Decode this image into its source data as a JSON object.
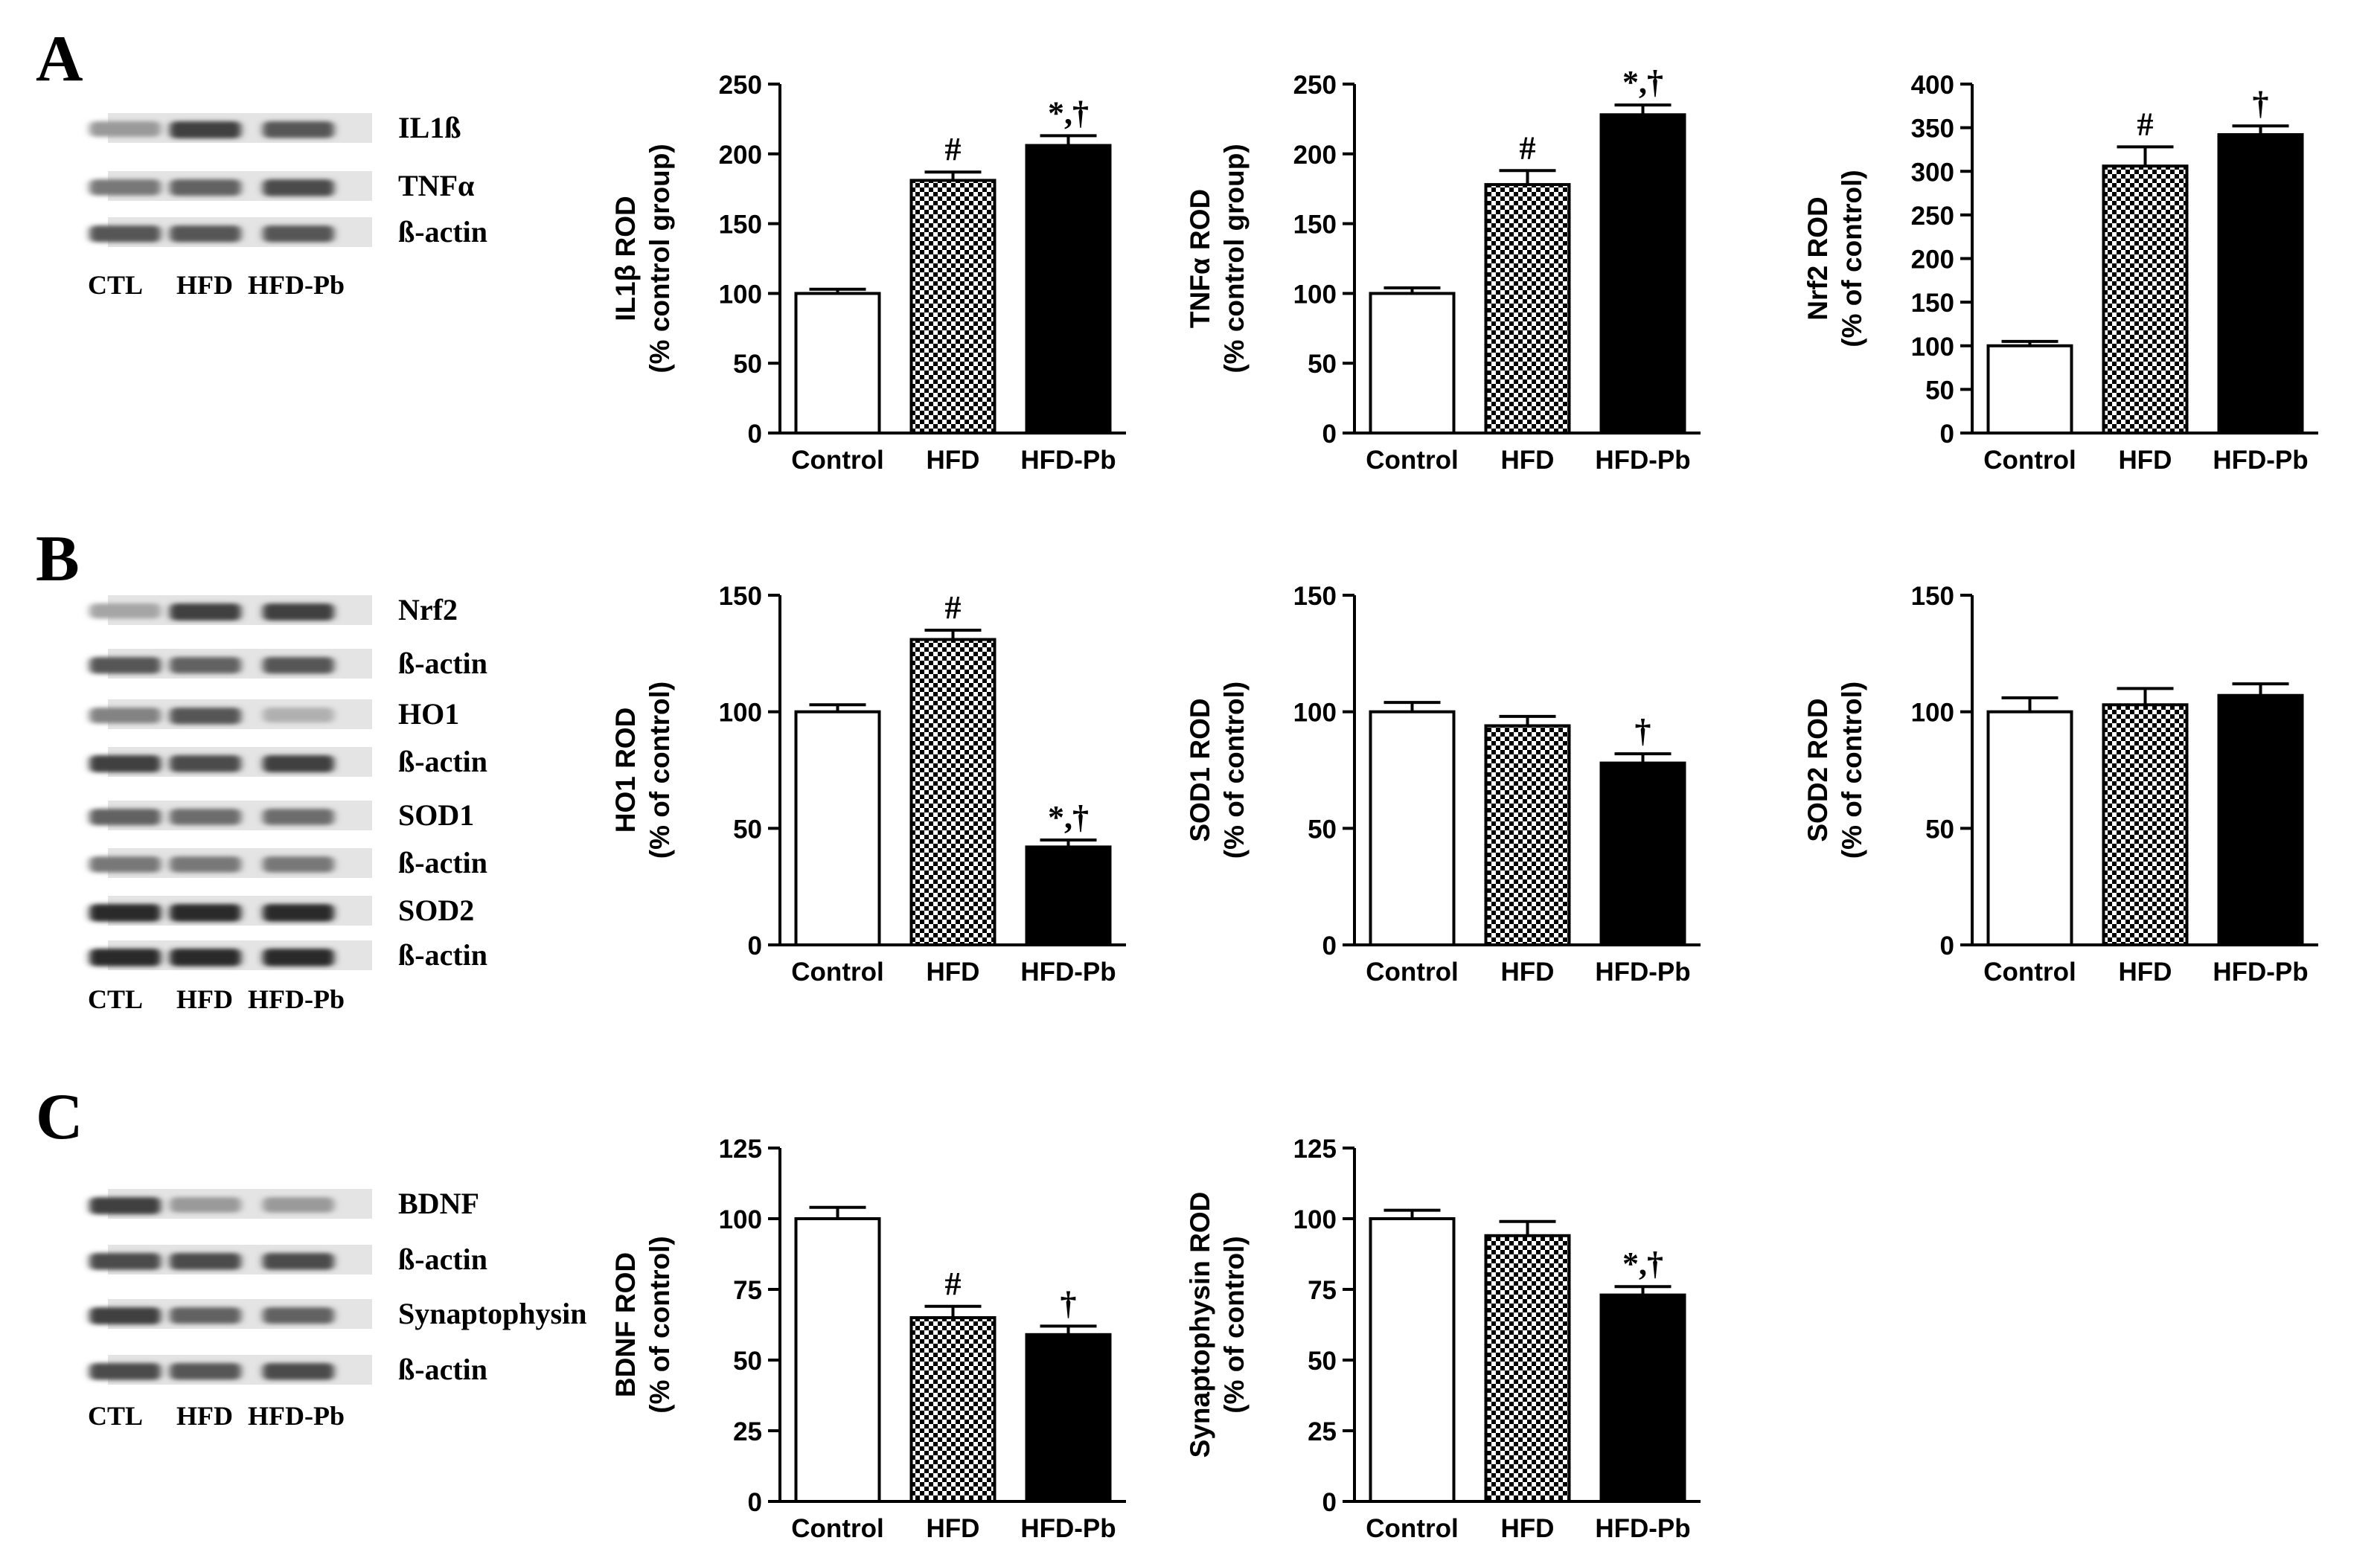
{
  "figure": {
    "panel_letters": [
      "A",
      "B",
      "C"
    ],
    "blots": [
      {
        "panel": "A",
        "labels": [
          "IL1ß",
          "TNFα",
          "ß-actin"
        ],
        "lanes": [
          "CTL",
          "HFD",
          "HFD-Pb"
        ],
        "bands": [
          [
            0.45,
            0.85,
            0.75
          ],
          [
            0.6,
            0.7,
            0.8
          ],
          [
            0.75,
            0.75,
            0.75
          ]
        ]
      },
      {
        "panel": "B",
        "labels": [
          "Nrf2",
          "ß-actin",
          "HO1",
          "ß-actin",
          "SOD1",
          "ß-actin",
          "SOD2",
          "ß-actin"
        ],
        "lanes": [
          "CTL",
          "HFD",
          "HFD-Pb"
        ],
        "bands": [
          [
            0.4,
            0.85,
            0.85
          ],
          [
            0.75,
            0.7,
            0.75
          ],
          [
            0.55,
            0.75,
            0.35
          ],
          [
            0.85,
            0.8,
            0.85
          ],
          [
            0.7,
            0.65,
            0.65
          ],
          [
            0.6,
            0.6,
            0.6
          ],
          [
            0.95,
            0.95,
            0.95
          ],
          [
            0.95,
            0.95,
            0.95
          ]
        ]
      },
      {
        "panel": "C",
        "labels": [
          "BDNF",
          "ß-actin",
          "Synaptophysin",
          "ß-actin"
        ],
        "lanes": [
          "CTL",
          "HFD",
          "HFD-Pb"
        ],
        "bands": [
          [
            0.85,
            0.45,
            0.45
          ],
          [
            0.8,
            0.8,
            0.8
          ],
          [
            0.85,
            0.7,
            0.7
          ],
          [
            0.8,
            0.75,
            0.8
          ]
        ]
      }
    ]
  },
  "chart_data": [
    {
      "type": "bar",
      "panel": "A",
      "ylabel": [
        "IL1β  ROD",
        "(% control group)"
      ],
      "categories": [
        "Control",
        "HFD",
        "HFD-Pb"
      ],
      "values": [
        100,
        181,
        206
      ],
      "errors": [
        3,
        6,
        7
      ],
      "annotations": [
        "",
        "#",
        "*,†"
      ],
      "ylim": [
        0,
        250
      ],
      "yticks": [
        "0",
        "50",
        "100",
        "150",
        "200",
        "250"
      ]
    },
    {
      "type": "bar",
      "panel": "A",
      "ylabel": [
        "TNFα  ROD",
        "(% control group)"
      ],
      "categories": [
        "Control",
        "HFD",
        "HFD-Pb"
      ],
      "values": [
        100,
        178,
        228
      ],
      "errors": [
        4,
        10,
        7
      ],
      "annotations": [
        "",
        "#",
        "*,†"
      ],
      "ylim": [
        0,
        250
      ],
      "yticks": [
        "0",
        "50",
        "100",
        "150",
        "200",
        "250"
      ]
    },
    {
      "type": "bar",
      "panel": "A",
      "ylabel": [
        "Nrf2 ROD",
        "(% of control)"
      ],
      "categories": [
        "Control",
        "HFD",
        "HFD-Pb"
      ],
      "values": [
        100,
        306,
        342
      ],
      "errors": [
        5,
        22,
        10
      ],
      "annotations": [
        "",
        "#",
        "†"
      ],
      "ylim": [
        0,
        400
      ],
      "yticks": [
        "0",
        "50",
        "100",
        "150",
        "200",
        "250",
        "300",
        "350",
        "400"
      ]
    },
    {
      "type": "bar",
      "panel": "B",
      "ylabel": [
        "HO1 ROD",
        "(% of control)"
      ],
      "categories": [
        "Control",
        "HFD",
        "HFD-Pb"
      ],
      "values": [
        100,
        131,
        42
      ],
      "errors": [
        3,
        4,
        3
      ],
      "annotations": [
        "",
        "#",
        "*,†"
      ],
      "ylim": [
        0,
        150
      ],
      "yticks": [
        "0",
        "50",
        "100",
        "150"
      ]
    },
    {
      "type": "bar",
      "panel": "B",
      "ylabel": [
        "SOD1 ROD",
        "(% of control)"
      ],
      "categories": [
        "Control",
        "HFD",
        "HFD-Pb"
      ],
      "values": [
        100,
        94,
        78
      ],
      "errors": [
        4,
        4,
        4
      ],
      "annotations": [
        "",
        "",
        "†"
      ],
      "ylim": [
        0,
        150
      ],
      "yticks": [
        "0",
        "50",
        "100",
        "150"
      ]
    },
    {
      "type": "bar",
      "panel": "B",
      "ylabel": [
        "SOD2 ROD",
        "(% of control)"
      ],
      "categories": [
        "Control",
        "HFD",
        "HFD-Pb"
      ],
      "values": [
        100,
        103,
        107
      ],
      "errors": [
        6,
        7,
        5
      ],
      "annotations": [
        "",
        "",
        ""
      ],
      "ylim": [
        0,
        150
      ],
      "yticks": [
        "0",
        "50",
        "100",
        "150"
      ]
    },
    {
      "type": "bar",
      "panel": "C",
      "ylabel": [
        "BDNF ROD",
        "(% of control)"
      ],
      "categories": [
        "Control",
        "HFD",
        "HFD-Pb"
      ],
      "values": [
        100,
        65,
        59
      ],
      "errors": [
        4,
        4,
        3
      ],
      "annotations": [
        "",
        "#",
        "†"
      ],
      "ylim": [
        0,
        125
      ],
      "yticks": [
        "0",
        "25",
        "50",
        "75",
        "100",
        "125"
      ]
    },
    {
      "type": "bar",
      "panel": "C",
      "ylabel": [
        "Synaptophysin ROD",
        "(% of control)"
      ],
      "categories": [
        "Control",
        "HFD",
        "HFD-Pb"
      ],
      "values": [
        100,
        94,
        73
      ],
      "errors": [
        3,
        5,
        3
      ],
      "annotations": [
        "",
        "",
        "*,†"
      ],
      "ylim": [
        0,
        125
      ],
      "yticks": [
        "0",
        "25",
        "50",
        "75",
        "100",
        "125"
      ]
    }
  ]
}
